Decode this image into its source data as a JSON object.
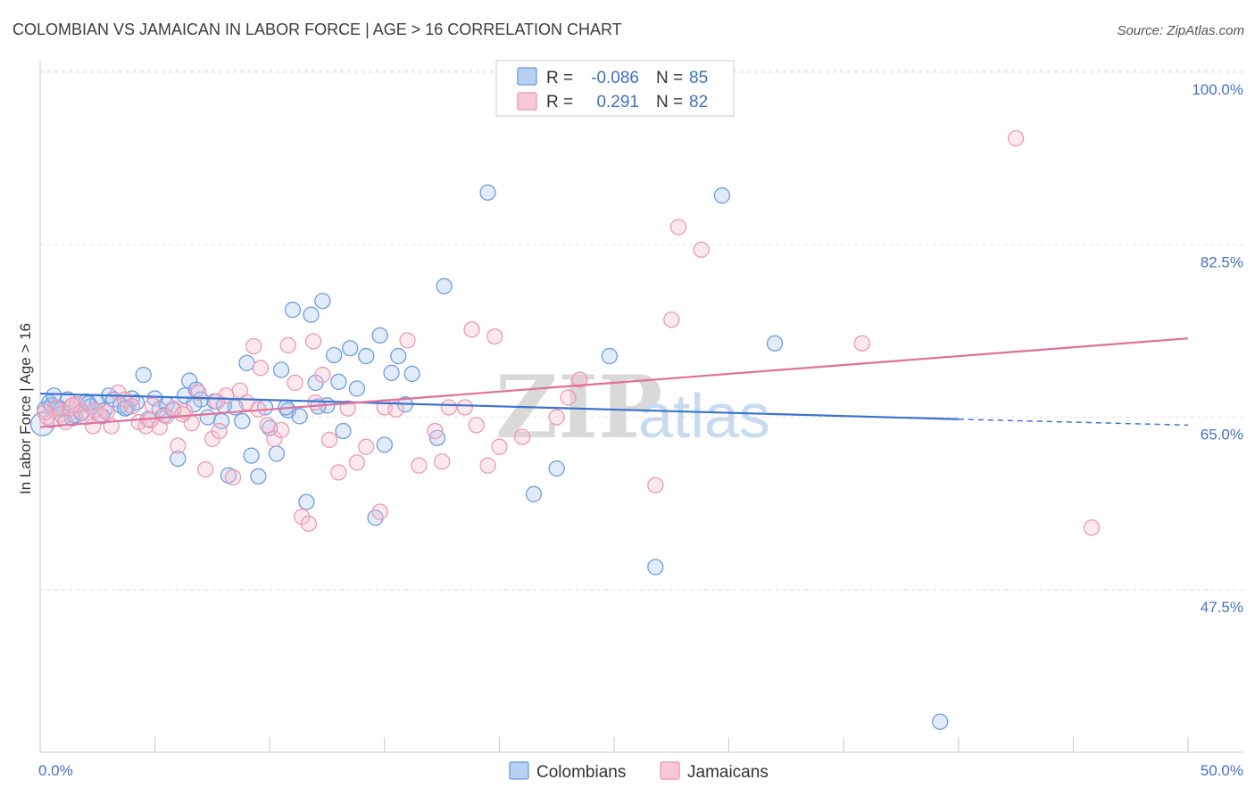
{
  "title": "COLOMBIAN VS JAMAICAN IN LABOR FORCE | AGE > 16 CORRELATION CHART",
  "source": "Source: ZipAtlas.com",
  "watermark": {
    "zip": "ZIP",
    "atlas": "atlas"
  },
  "legend": {
    "rows": [
      {
        "r_label": "R =",
        "r_value": "-0.086",
        "n_label": "N =",
        "n_value": "85",
        "color": "#7aa6e6"
      },
      {
        "r_label": "R =",
        "r_value": "0.291",
        "n_label": "N =",
        "n_value": "82",
        "color": "#f0a0b8"
      }
    ]
  },
  "bottom_legend": [
    {
      "label": "Colombians",
      "color": "#7aa6e6"
    },
    {
      "label": "Jamaicans",
      "color": "#f0a0b8"
    }
  ],
  "chart_data": {
    "type": "scatter",
    "title": "COLOMBIAN VS JAMAICAN IN LABOR FORCE | AGE > 16 CORRELATION CHART",
    "xlabel": "",
    "ylabel": "In Labor Force | Age > 16",
    "xlim": [
      0,
      50
    ],
    "ylim": [
      31,
      101
    ],
    "x_tick_labels": [
      "0.0%",
      "50.0%"
    ],
    "y_ticks": [
      47.5,
      65.0,
      82.5,
      100.0
    ],
    "y_tick_labels": [
      "47.5%",
      "65.0%",
      "82.5%",
      "100.0%"
    ],
    "grid": true,
    "legend_position": "top-center",
    "colors": {
      "colombians": "#4a7fd4",
      "jamaicans": "#e07098",
      "colombians_fill": "#a9c6ef",
      "jamaicans_fill": "#f5bfcf"
    },
    "series": [
      {
        "name": "Colombians",
        "trend": {
          "x0": 0,
          "y0": 67.4,
          "x1": 40,
          "y1": 64.8,
          "dashed_to_x": 50,
          "dashed_to_y": 64.2
        },
        "points": [
          [
            0.2,
            65.8
          ],
          [
            0.4,
            66.5
          ],
          [
            0.5,
            66.2
          ],
          [
            0.6,
            67.2
          ],
          [
            0.8,
            66.0
          ],
          [
            1.0,
            65.0
          ],
          [
            1.2,
            66.8
          ],
          [
            1.4,
            64.9
          ],
          [
            1.6,
            66.3
          ],
          [
            1.8,
            65.4
          ],
          [
            2.0,
            66.6
          ],
          [
            2.2,
            66.1
          ],
          [
            2.5,
            66.5
          ],
          [
            2.8,
            65.7
          ],
          [
            3.0,
            67.2
          ],
          [
            3.2,
            66.8
          ],
          [
            3.5,
            66.2
          ],
          [
            3.8,
            66.0
          ],
          [
            4.0,
            66.9
          ],
          [
            4.2,
            66.5
          ],
          [
            4.5,
            69.3
          ],
          [
            4.7,
            64.8
          ],
          [
            5.0,
            66.9
          ],
          [
            5.2,
            65.8
          ],
          [
            5.5,
            66.3
          ],
          [
            5.8,
            65.7
          ],
          [
            6.0,
            60.8
          ],
          [
            6.3,
            67.2
          ],
          [
            6.5,
            68.7
          ],
          [
            6.8,
            67.8
          ],
          [
            7.0,
            66.8
          ],
          [
            7.3,
            65.0
          ],
          [
            7.6,
            66.6
          ],
          [
            7.9,
            64.6
          ],
          [
            8.2,
            59.1
          ],
          [
            8.5,
            66.0
          ],
          [
            8.8,
            64.6
          ],
          [
            9.0,
            70.5
          ],
          [
            9.2,
            61.1
          ],
          [
            9.5,
            59.0
          ],
          [
            9.8,
            66.0
          ],
          [
            10.0,
            63.9
          ],
          [
            10.3,
            61.3
          ],
          [
            10.5,
            69.8
          ],
          [
            10.8,
            65.7
          ],
          [
            11.0,
            75.9
          ],
          [
            11.3,
            65.1
          ],
          [
            11.6,
            56.4
          ],
          [
            11.8,
            75.4
          ],
          [
            12.0,
            68.5
          ],
          [
            12.3,
            76.8
          ],
          [
            12.5,
            66.2
          ],
          [
            12.8,
            71.3
          ],
          [
            13.0,
            68.6
          ],
          [
            13.2,
            63.6
          ],
          [
            13.5,
            72.0
          ],
          [
            13.8,
            67.9
          ],
          [
            14.2,
            71.2
          ],
          [
            14.6,
            54.8
          ],
          [
            14.8,
            73.3
          ],
          [
            15.0,
            62.2
          ],
          [
            15.3,
            69.5
          ],
          [
            15.6,
            71.2
          ],
          [
            15.9,
            66.3
          ],
          [
            16.2,
            69.4
          ],
          [
            17.3,
            62.9
          ],
          [
            17.6,
            78.3
          ],
          [
            19.5,
            87.8
          ],
          [
            21.5,
            57.2
          ],
          [
            22.5,
            59.8
          ],
          [
            24.8,
            71.2
          ],
          [
            26.8,
            49.8
          ],
          [
            29.7,
            87.5
          ],
          [
            32.0,
            72.5
          ],
          [
            39.2,
            34.1
          ],
          [
            1.5,
            65.2
          ],
          [
            2.7,
            65.1
          ],
          [
            6.7,
            66.3
          ],
          [
            8.0,
            66.2
          ],
          [
            10.7,
            66.0
          ],
          [
            12.1,
            66.1
          ],
          [
            5.4,
            65.2
          ],
          [
            3.7,
            65.9
          ],
          [
            0.9,
            65.8
          ],
          [
            2.1,
            66.4
          ]
        ]
      },
      {
        "name": "Jamaicans",
        "trend": {
          "x0": 0,
          "y0": 64.0,
          "x1": 50,
          "y1": 73.0
        },
        "points": [
          [
            0.3,
            65.0
          ],
          [
            0.5,
            64.7
          ],
          [
            0.7,
            66.0
          ],
          [
            0.9,
            65.3
          ],
          [
            1.1,
            64.5
          ],
          [
            1.3,
            65.9
          ],
          [
            1.6,
            66.3
          ],
          [
            1.8,
            65.6
          ],
          [
            2.0,
            65.0
          ],
          [
            2.3,
            64.1
          ],
          [
            2.6,
            65.2
          ],
          [
            2.9,
            65.5
          ],
          [
            3.1,
            64.1
          ],
          [
            3.4,
            67.5
          ],
          [
            3.7,
            66.8
          ],
          [
            4.0,
            66.1
          ],
          [
            4.3,
            64.5
          ],
          [
            4.6,
            64.1
          ],
          [
            4.9,
            66.2
          ],
          [
            5.2,
            64.0
          ],
          [
            5.5,
            65.1
          ],
          [
            5.8,
            65.9
          ],
          [
            6.0,
            62.1
          ],
          [
            6.3,
            65.6
          ],
          [
            6.6,
            64.4
          ],
          [
            6.9,
            67.5
          ],
          [
            7.2,
            59.7
          ],
          [
            7.5,
            62.8
          ],
          [
            7.8,
            63.6
          ],
          [
            8.1,
            67.2
          ],
          [
            8.4,
            58.9
          ],
          [
            8.7,
            67.7
          ],
          [
            9.0,
            66.5
          ],
          [
            9.3,
            72.2
          ],
          [
            9.6,
            70.0
          ],
          [
            9.9,
            64.2
          ],
          [
            10.2,
            62.8
          ],
          [
            10.5,
            63.7
          ],
          [
            10.8,
            72.3
          ],
          [
            11.1,
            68.5
          ],
          [
            11.4,
            54.9
          ],
          [
            11.7,
            54.2
          ],
          [
            11.9,
            72.7
          ],
          [
            12.3,
            69.3
          ],
          [
            12.6,
            62.7
          ],
          [
            13.0,
            59.4
          ],
          [
            13.4,
            65.9
          ],
          [
            13.8,
            60.4
          ],
          [
            14.2,
            62.0
          ],
          [
            14.8,
            55.4
          ],
          [
            15.0,
            66.0
          ],
          [
            16.0,
            72.8
          ],
          [
            16.5,
            60.1
          ],
          [
            17.2,
            63.6
          ],
          [
            17.5,
            60.5
          ],
          [
            17.8,
            66.0
          ],
          [
            18.5,
            66.0
          ],
          [
            18.8,
            73.9
          ],
          [
            19.0,
            64.2
          ],
          [
            19.5,
            60.1
          ],
          [
            19.8,
            73.2
          ],
          [
            20.0,
            62.0
          ],
          [
            21.0,
            63.0
          ],
          [
            22.5,
            65.0
          ],
          [
            23.0,
            67.0
          ],
          [
            23.5,
            68.8
          ],
          [
            26.8,
            58.1
          ],
          [
            27.5,
            74.9
          ],
          [
            27.8,
            84.3
          ],
          [
            28.8,
            82.0
          ],
          [
            35.8,
            72.5
          ],
          [
            42.5,
            93.3
          ],
          [
            45.8,
            53.8
          ],
          [
            0.2,
            65.5
          ],
          [
            1.4,
            66.2
          ],
          [
            2.4,
            65.7
          ],
          [
            4.8,
            64.7
          ],
          [
            6.2,
            65.3
          ],
          [
            7.7,
            66.6
          ],
          [
            9.5,
            65.8
          ],
          [
            12.0,
            66.5
          ],
          [
            15.5,
            65.8
          ]
        ]
      }
    ]
  }
}
